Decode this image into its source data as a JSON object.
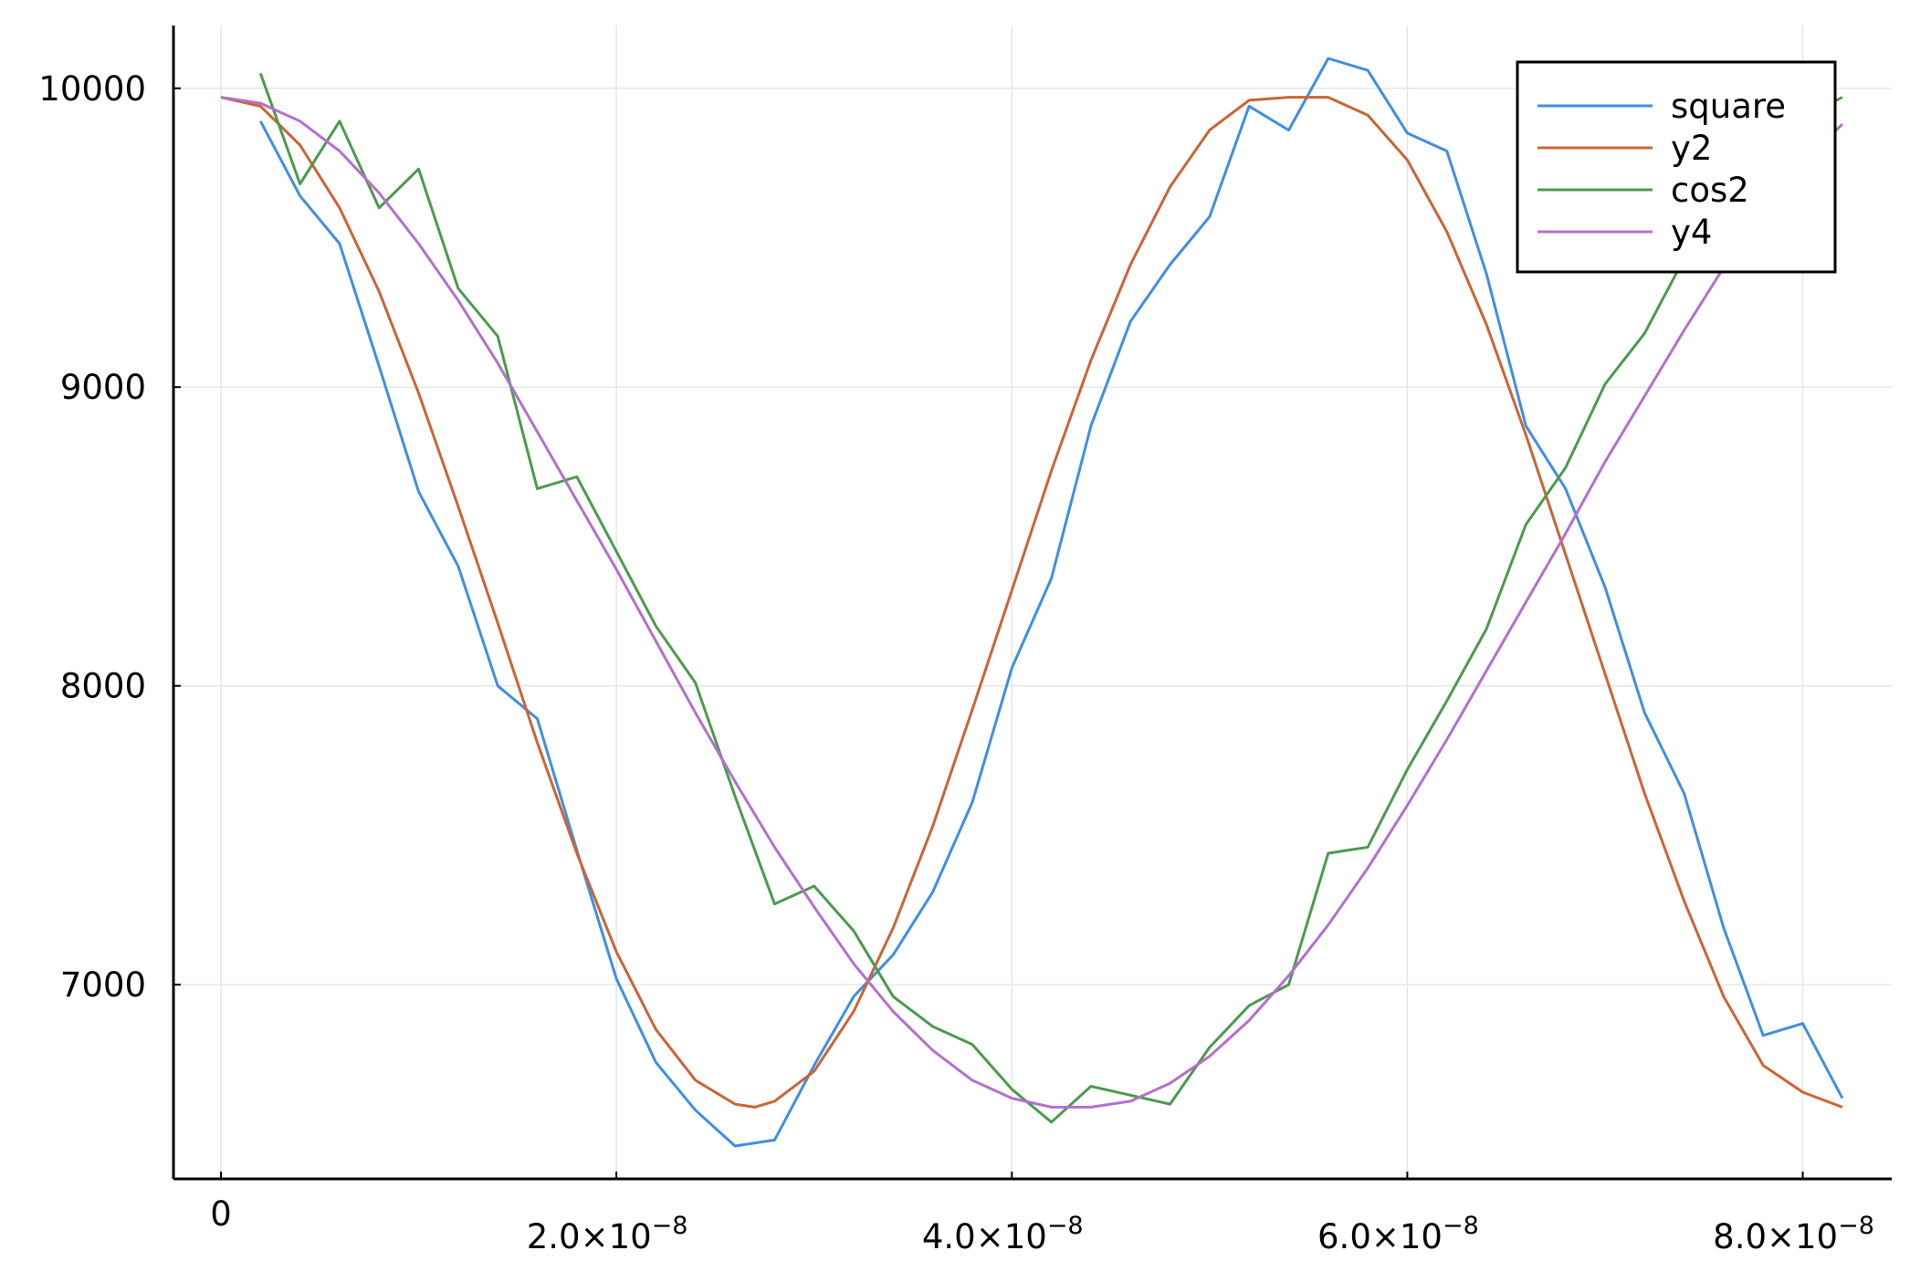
{
  "chart_data": {
    "type": "line",
    "title": "",
    "xlabel": "",
    "ylabel": "",
    "xlim": [
      -2.4e-09,
      8.45e-08
    ],
    "ylim": [
      6350,
      10210
    ],
    "grid": true,
    "legend_position": "top-right",
    "x_ticks": [
      {
        "value": 0,
        "label": "0",
        "exp": ""
      },
      {
        "value": 2e-08,
        "label": "2.0×10",
        "exp": "−8"
      },
      {
        "value": 4e-08,
        "label": "4.0×10",
        "exp": "−8"
      },
      {
        "value": 6e-08,
        "label": "6.0×10",
        "exp": "−8"
      },
      {
        "value": 8e-08,
        "label": "8.0×10",
        "exp": "−8"
      }
    ],
    "y_ticks": [
      {
        "value": 7000,
        "label": "7000"
      },
      {
        "value": 8000,
        "label": "8000"
      },
      {
        "value": 9000,
        "label": "9000"
      },
      {
        "value": 10000,
        "label": "10000"
      }
    ],
    "series": [
      {
        "name": "square",
        "color": "#3e8fe3",
        "x": [
          2e-09,
          4e-09,
          6e-09,
          8e-09,
          1e-08,
          1.2e-08,
          1.4e-08,
          1.6e-08,
          1.8e-08,
          2e-08,
          2.2e-08,
          2.4e-08,
          2.6e-08,
          2.8e-08,
          3e-08,
          3.2e-08,
          3.4e-08,
          3.6e-08,
          3.8e-08,
          4e-08,
          4.2e-08,
          4.4e-08,
          4.6e-08,
          4.8e-08,
          5e-08,
          5.2e-08,
          5.4e-08,
          5.6e-08,
          5.8e-08,
          6e-08,
          6.2e-08,
          6.4e-08,
          6.6e-08,
          6.8e-08,
          7e-08,
          7.2e-08,
          7.4e-08,
          7.6e-08,
          7.8e-08,
          8e-08,
          8.2e-08
        ],
        "y": [
          9890,
          9640,
          9480,
          9070,
          8650,
          8400,
          8000,
          7890,
          7450,
          7020,
          6740,
          6580,
          6460,
          6480,
          6730,
          6960,
          7100,
          7310,
          7610,
          8060,
          8360,
          8870,
          9220,
          9410,
          9570,
          9940,
          9860,
          10100,
          10060,
          9850,
          9790,
          9380,
          8870,
          8660,
          8330,
          7910,
          7640,
          7190,
          6830,
          6870,
          6620
        ]
      },
      {
        "name": "y2",
        "color": "#cc6435",
        "x": [
          0,
          2e-09,
          4e-09,
          6e-09,
          8e-09,
          1e-08,
          1.2e-08,
          1.4e-08,
          1.6e-08,
          1.8e-08,
          2e-08,
          2.2e-08,
          2.4e-08,
          2.6e-08,
          2.7e-08,
          2.8e-08,
          3e-08,
          3.2e-08,
          3.4e-08,
          3.6e-08,
          3.8e-08,
          4e-08,
          4.2e-08,
          4.4e-08,
          4.6e-08,
          4.8e-08,
          5e-08,
          5.2e-08,
          5.4e-08,
          5.6e-08,
          5.8e-08,
          6e-08,
          6.2e-08,
          6.4e-08,
          6.6e-08,
          6.8e-08,
          7e-08,
          7.2e-08,
          7.4e-08,
          7.6e-08,
          7.8e-08,
          8e-08,
          8.2e-08
        ],
        "y": [
          9970,
          9940,
          9810,
          9600,
          9320,
          8980,
          8600,
          8210,
          7810,
          7440,
          7110,
          6850,
          6680,
          6600,
          6590,
          6610,
          6710,
          6910,
          7190,
          7530,
          7920,
          8320,
          8720,
          9090,
          9410,
          9670,
          9860,
          9960,
          9970,
          9970,
          9910,
          9760,
          9520,
          9210,
          8840,
          8440,
          8040,
          7640,
          7280,
          6960,
          6730,
          6640,
          6590
        ]
      },
      {
        "name": "cos2",
        "color": "#4b9b4c",
        "x": [
          2e-09,
          4e-09,
          6e-09,
          8e-09,
          1e-08,
          1.2e-08,
          1.4e-08,
          1.6e-08,
          1.8e-08,
          2e-08,
          2.2e-08,
          2.4e-08,
          2.6e-08,
          2.8e-08,
          3e-08,
          3.2e-08,
          3.4e-08,
          3.6e-08,
          3.8e-08,
          4e-08,
          4.2e-08,
          4.4e-08,
          4.6e-08,
          4.8e-08,
          5e-08,
          5.2e-08,
          5.4e-08,
          5.6e-08,
          5.8e-08,
          6e-08,
          6.2e-08,
          6.4e-08,
          6.6e-08,
          6.8e-08,
          7e-08,
          7.2e-08,
          7.4e-08,
          7.6e-08,
          7.8e-08,
          8e-08,
          8.2e-08
        ],
        "y": [
          10050,
          9680,
          9890,
          9600,
          9730,
          9330,
          9170,
          8660,
          8700,
          8450,
          8200,
          8010,
          7630,
          7270,
          7330,
          7180,
          6960,
          6860,
          6800,
          6650,
          6540,
          6660,
          6630,
          6600,
          6790,
          6930,
          7000,
          7440,
          7460,
          7720,
          7950,
          8190,
          8540,
          8730,
          9010,
          9180,
          9430,
          9670,
          9820,
          9900,
          9970
        ]
      },
      {
        "name": "y4",
        "color": "#b46fce",
        "x": [
          0,
          2e-09,
          4e-09,
          6e-09,
          8e-09,
          1e-08,
          1.2e-08,
          1.4e-08,
          1.6e-08,
          1.8e-08,
          2e-08,
          2.2e-08,
          2.4e-08,
          2.6e-08,
          2.8e-08,
          3e-08,
          3.2e-08,
          3.4e-08,
          3.6e-08,
          3.8e-08,
          4e-08,
          4.2e-08,
          4.4e-08,
          4.6e-08,
          4.8e-08,
          5e-08,
          5.2e-08,
          5.4e-08,
          5.6e-08,
          5.8e-08,
          6e-08,
          6.2e-08,
          6.4e-08,
          6.6e-08,
          6.8e-08,
          7e-08,
          7.2e-08,
          7.4e-08,
          7.6e-08,
          7.8e-08,
          8e-08,
          8.2e-08
        ],
        "y": [
          9970,
          9950,
          9890,
          9790,
          9650,
          9480,
          9290,
          9080,
          8850,
          8620,
          8390,
          8150,
          7910,
          7680,
          7460,
          7260,
          7070,
          6910,
          6780,
          6680,
          6620,
          6590,
          6590,
          6610,
          6670,
          6760,
          6880,
          7030,
          7200,
          7390,
          7600,
          7820,
          8050,
          8280,
          8510,
          8750,
          8970,
          9190,
          9400,
          9590,
          9750,
          9880
        ]
      }
    ]
  }
}
